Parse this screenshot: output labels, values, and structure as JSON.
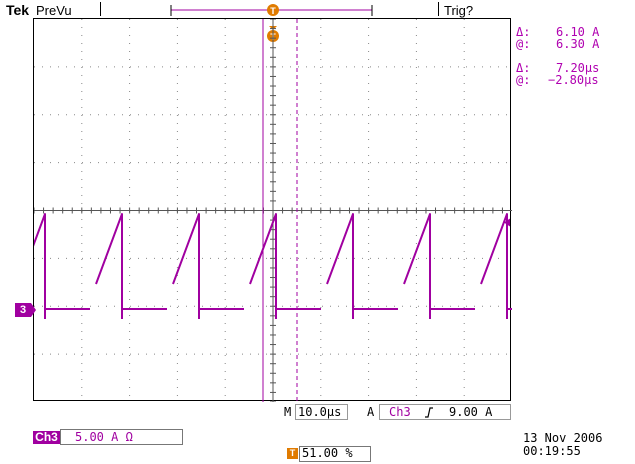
{
  "header": {
    "brand": "Tek",
    "mode": "PreVu",
    "trigger_status": "Trig?"
  },
  "measurements": {
    "delta_amp_label": "Δ:",
    "delta_amp": "6.10 A",
    "at_amp_label": "@:",
    "at_amp": "6.30 A",
    "delta_time_label": "Δ:",
    "delta_time": "7.20µs",
    "at_time_label": "@:",
    "at_time": "−2.80µs"
  },
  "horizontal": {
    "m_label": "M",
    "timebase": "10.0µs",
    "a_label": "A",
    "trig_source": "Ch3",
    "slope_icon": "rising-edge-icon",
    "trig_level": "9.00 A"
  },
  "channel": {
    "badge": "Ch3",
    "scale": "5.00 A Ω",
    "marker": "3",
    "color": "#a000a0"
  },
  "trigger_position": {
    "icon": "T",
    "value": "51.00 %",
    "color": "#e07b00"
  },
  "timestamp": {
    "date": "13 Nov 2006",
    "time": "00:19:55"
  }
}
